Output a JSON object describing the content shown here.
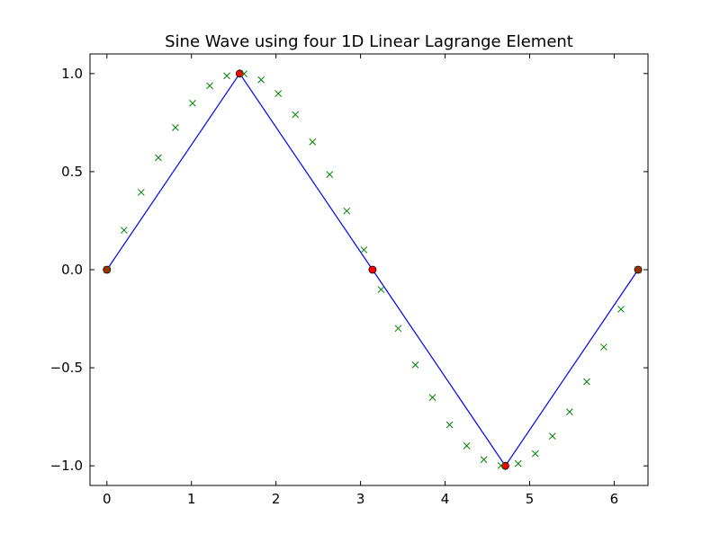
{
  "chart_data": {
    "type": "line",
    "title": "Sine Wave using four 1D Linear Lagrange Element",
    "xlabel": "",
    "ylabel": "",
    "xlim": [
      -0.2,
      6.4
    ],
    "ylim": [
      -1.1,
      1.1
    ],
    "grid": false,
    "x_ticks": [
      0,
      1,
      2,
      3,
      4,
      5,
      6
    ],
    "x_tick_labels": [
      "0",
      "1",
      "2",
      "3",
      "4",
      "5",
      "6"
    ],
    "y_ticks": [
      -1.0,
      -0.5,
      0.0,
      0.5,
      1.0
    ],
    "y_tick_labels": [
      "−1.0",
      "−0.5",
      "0.0",
      "0.5",
      "1.0"
    ],
    "series": [
      {
        "kind": "line",
        "color": "#0000ff",
        "x": [
          0,
          1.5708,
          3.1416,
          4.7124,
          6.2832
        ],
        "y": [
          0,
          1,
          0,
          -1,
          0
        ]
      },
      {
        "kind": "markers",
        "marker": "circle",
        "color": "#ff0000",
        "x": [
          0,
          1.5708,
          3.1416,
          4.7124,
          6.2832
        ],
        "y": [
          0,
          1,
          0,
          -1,
          0
        ]
      },
      {
        "kind": "markers",
        "marker": "x",
        "color": "#008000",
        "x": [
          0,
          0.2026,
          0.4054,
          0.608,
          0.8107,
          1.0134,
          1.2161,
          1.4187,
          1.6214,
          1.8241,
          2.0268,
          2.2294,
          2.4321,
          2.6348,
          2.8375,
          3.0401,
          3.2428,
          3.4455,
          3.6482,
          3.8508,
          4.0535,
          4.2562,
          4.4589,
          4.6615,
          4.8642,
          5.0669,
          5.2696,
          5.4722,
          5.6749,
          5.8776,
          6.0803,
          6.2832
        ],
        "y": [
          0,
          0.2013,
          0.3944,
          0.5713,
          0.7248,
          0.8486,
          0.9378,
          0.9884,
          0.9987,
          0.9682,
          0.8978,
          0.7908,
          0.6514,
          0.4853,
          0.2994,
          0.1012,
          -0.1012,
          -0.2994,
          -0.4853,
          -0.6514,
          -0.7908,
          -0.8978,
          -0.9682,
          -0.9987,
          -0.9884,
          -0.9378,
          -0.8486,
          -0.7248,
          -0.5713,
          -0.3944,
          -0.2013,
          0
        ]
      }
    ]
  }
}
